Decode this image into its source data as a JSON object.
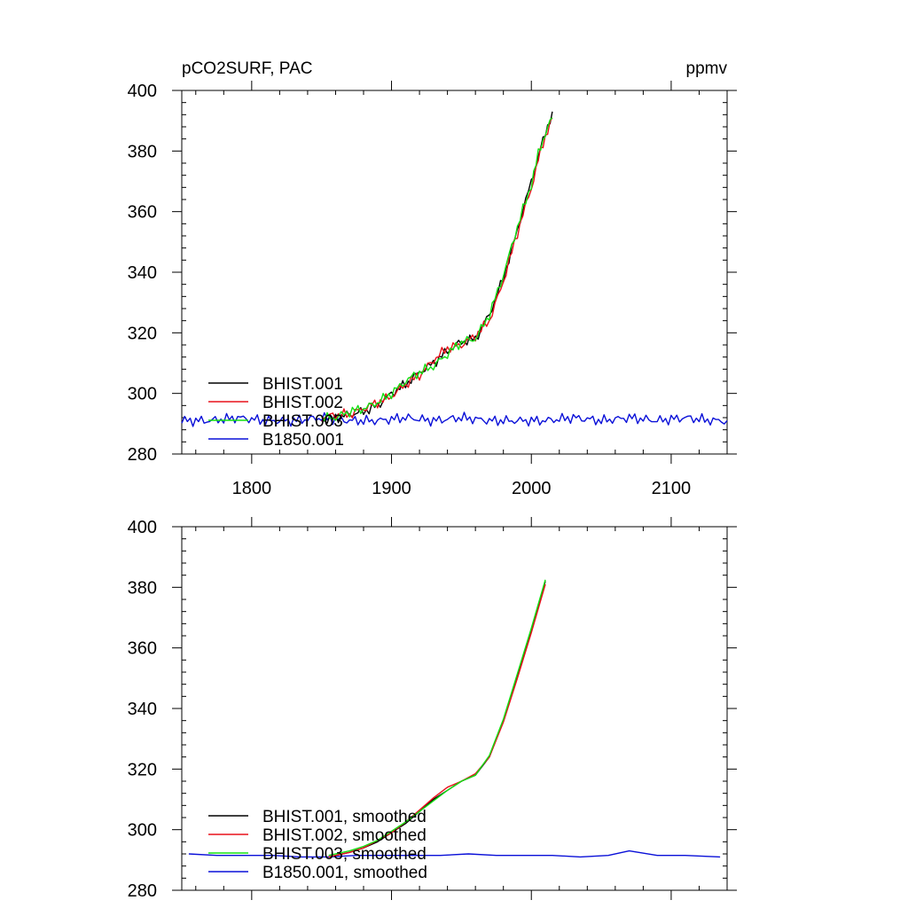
{
  "colors": {
    "BHIST.001": "#000000",
    "BHIST.002": "#e8101a",
    "BHIST.003": "#12e012",
    "B1850.001": "#0a10d8"
  },
  "chart_data": [
    {
      "type": "line",
      "title": "pCO2SURF, PAC",
      "units": "ppmv",
      "xlim": [
        1750,
        2140
      ],
      "ylim": [
        280,
        400
      ],
      "xticks": [
        1800,
        1900,
        2000,
        2100
      ],
      "yticks": [
        280,
        300,
        320,
        340,
        360,
        380,
        400
      ],
      "xtick_labels": [
        "1800",
        "1900",
        "2000",
        "2100"
      ],
      "ytick_labels": [
        "280",
        "300",
        "320",
        "340",
        "360",
        "380",
        "400"
      ],
      "grid": false,
      "legend_position": "bottom-left",
      "series": [
        {
          "name": "BHIST.001",
          "x": [
            1850,
            1860,
            1870,
            1880,
            1890,
            1900,
            1910,
            1920,
            1930,
            1940,
            1950,
            1960,
            1970,
            1980,
            1990,
            2000,
            2005,
            2010,
            2015
          ],
          "y": [
            291,
            292,
            293,
            294,
            296,
            300,
            303,
            307,
            310,
            314,
            317,
            318,
            326,
            338,
            354,
            370,
            378,
            386,
            393
          ]
        },
        {
          "name": "BHIST.002",
          "x": [
            1850,
            1860,
            1870,
            1880,
            1890,
            1900,
            1910,
            1920,
            1930,
            1940,
            1950,
            1960,
            1970,
            1980,
            1990,
            2000,
            2005,
            2010,
            2015
          ],
          "y": [
            292,
            293,
            293,
            295,
            297,
            299,
            303,
            306,
            311,
            315,
            316,
            319,
            324,
            337,
            353,
            368,
            377,
            385,
            391
          ]
        },
        {
          "name": "BHIST.003",
          "x": [
            1850,
            1860,
            1870,
            1880,
            1890,
            1900,
            1910,
            1920,
            1930,
            1940,
            1950,
            1960,
            1970,
            1980,
            1990,
            2000,
            2005,
            2010,
            2015
          ],
          "y": [
            292,
            292,
            294,
            295,
            297,
            300,
            304,
            307,
            309,
            313,
            317,
            318,
            326,
            339,
            355,
            369,
            379,
            386,
            391
          ]
        },
        {
          "name": "B1850.001",
          "x": [
            1750,
            1770,
            1790,
            1810,
            1830,
            1850,
            1870,
            1890,
            1910,
            1930,
            1950,
            1970,
            1990,
            2010,
            2030,
            2050,
            2070,
            2090,
            2110,
            2130,
            2140
          ],
          "y": [
            291,
            291,
            292,
            291,
            291,
            292,
            291,
            291,
            292,
            291,
            292,
            291,
            291,
            291,
            292,
            291,
            292,
            291,
            292,
            291,
            291
          ]
        }
      ]
    },
    {
      "type": "line",
      "xlim": [
        1750,
        2140
      ],
      "ylim": [
        280,
        400
      ],
      "xticks": [
        1800,
        1900,
        2000,
        2100
      ],
      "yticks": [
        280,
        300,
        320,
        340,
        360,
        380,
        400
      ],
      "ytick_labels": [
        "280",
        "300",
        "320",
        "340",
        "360",
        "380",
        "400"
      ],
      "grid": false,
      "legend_position": "bottom-left",
      "series": [
        {
          "name": "BHIST.001, smoothed",
          "x": [
            1855,
            1870,
            1880,
            1890,
            1900,
            1910,
            1920,
            1930,
            1940,
            1950,
            1960,
            1970,
            1980,
            1990,
            2000,
            2010
          ],
          "y": [
            291,
            292.5,
            294,
            296,
            299,
            302,
            306,
            310,
            313,
            316,
            318,
            324,
            336,
            351,
            366,
            382
          ]
        },
        {
          "name": "BHIST.002, smoothed",
          "x": [
            1855,
            1870,
            1880,
            1890,
            1900,
            1910,
            1920,
            1930,
            1940,
            1950,
            1960,
            1970,
            1980,
            1990,
            2000,
            2010
          ],
          "y": [
            291,
            292.5,
            294,
            296.5,
            299,
            302.5,
            306.5,
            310.5,
            314,
            316,
            318.5,
            324,
            335.5,
            350,
            365,
            381
          ]
        },
        {
          "name": "BHIST.003, smoothed",
          "x": [
            1855,
            1870,
            1880,
            1890,
            1900,
            1910,
            1920,
            1930,
            1940,
            1950,
            1960,
            1970,
            1980,
            1990,
            2000,
            2010
          ],
          "y": [
            291.5,
            293,
            294.5,
            296.5,
            299.5,
            302.5,
            306,
            309.5,
            313,
            316,
            318,
            324.5,
            336.5,
            351.5,
            366.5,
            382.5
          ]
        },
        {
          "name": "B1850.001, smoothed",
          "x": [
            1755,
            1775,
            1795,
            1815,
            1835,
            1855,
            1875,
            1895,
            1915,
            1935,
            1955,
            1975,
            1995,
            2015,
            2035,
            2055,
            2070,
            2090,
            2110,
            2135
          ],
          "y": [
            292,
            291.5,
            291.5,
            291.5,
            291,
            291,
            291.5,
            291.5,
            291.5,
            291.5,
            292,
            291.5,
            291.5,
            291.5,
            291,
            291.5,
            293,
            291.5,
            291.5,
            291
          ]
        }
      ]
    }
  ]
}
